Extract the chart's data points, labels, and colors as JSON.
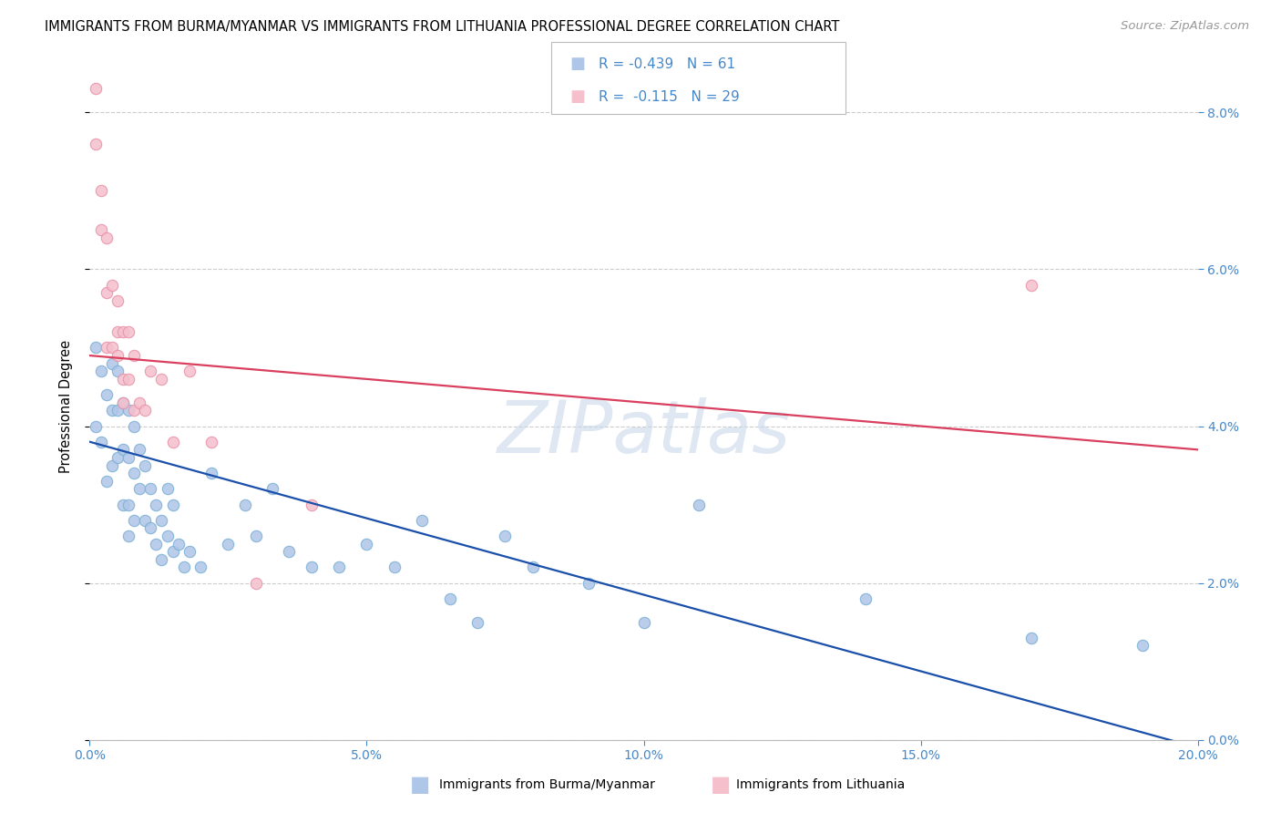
{
  "title": "IMMIGRANTS FROM BURMA/MYANMAR VS IMMIGRANTS FROM LITHUANIA PROFESSIONAL DEGREE CORRELATION CHART",
  "source": "Source: ZipAtlas.com",
  "ylabel": "Professional Degree",
  "legend_blue_label": "Immigrants from Burma/Myanmar",
  "legend_pink_label": "Immigrants from Lithuania",
  "legend_blue_R_val": "-0.439",
  "legend_blue_N_val": "61",
  "legend_pink_R_val": "-0.115",
  "legend_pink_N_val": "29",
  "xlim": [
    0.0,
    0.2
  ],
  "ylim": [
    0.0,
    0.085
  ],
  "xticks": [
    0.0,
    0.05,
    0.1,
    0.15,
    0.2
  ],
  "yticks": [
    0.0,
    0.02,
    0.04,
    0.06,
    0.08
  ],
  "blue_fill": "#aec6e8",
  "pink_fill": "#f5bfcc",
  "blue_edge": "#7aafd4",
  "pink_edge": "#e890a8",
  "blue_line_color": "#1a4faa",
  "pink_line_color": "#d94060",
  "background_color": "#ffffff",
  "grid_color": "#cccccc",
  "tick_color": "#4488cc",
  "watermark_color": "#c8d8ea",
  "blue_x": [
    0.001,
    0.001,
    0.002,
    0.002,
    0.003,
    0.003,
    0.004,
    0.004,
    0.004,
    0.005,
    0.005,
    0.005,
    0.006,
    0.006,
    0.006,
    0.007,
    0.007,
    0.007,
    0.007,
    0.008,
    0.008,
    0.008,
    0.009,
    0.009,
    0.01,
    0.01,
    0.011,
    0.011,
    0.012,
    0.012,
    0.013,
    0.013,
    0.014,
    0.014,
    0.015,
    0.015,
    0.016,
    0.017,
    0.018,
    0.02,
    0.022,
    0.025,
    0.028,
    0.03,
    0.033,
    0.036,
    0.04,
    0.045,
    0.05,
    0.055,
    0.06,
    0.065,
    0.07,
    0.075,
    0.08,
    0.09,
    0.1,
    0.11,
    0.14,
    0.17,
    0.19
  ],
  "blue_y": [
    0.05,
    0.04,
    0.047,
    0.038,
    0.044,
    0.033,
    0.048,
    0.042,
    0.035,
    0.047,
    0.042,
    0.036,
    0.043,
    0.037,
    0.03,
    0.042,
    0.036,
    0.03,
    0.026,
    0.04,
    0.034,
    0.028,
    0.037,
    0.032,
    0.035,
    0.028,
    0.032,
    0.027,
    0.03,
    0.025,
    0.028,
    0.023,
    0.032,
    0.026,
    0.03,
    0.024,
    0.025,
    0.022,
    0.024,
    0.022,
    0.034,
    0.025,
    0.03,
    0.026,
    0.032,
    0.024,
    0.022,
    0.022,
    0.025,
    0.022,
    0.028,
    0.018,
    0.015,
    0.026,
    0.022,
    0.02,
    0.015,
    0.03,
    0.018,
    0.013,
    0.012
  ],
  "pink_x": [
    0.001,
    0.001,
    0.002,
    0.002,
    0.003,
    0.003,
    0.003,
    0.004,
    0.004,
    0.005,
    0.005,
    0.005,
    0.006,
    0.006,
    0.006,
    0.007,
    0.007,
    0.008,
    0.008,
    0.009,
    0.01,
    0.011,
    0.013,
    0.015,
    0.018,
    0.022,
    0.03,
    0.04,
    0.17
  ],
  "pink_y": [
    0.083,
    0.076,
    0.07,
    0.065,
    0.064,
    0.057,
    0.05,
    0.058,
    0.05,
    0.056,
    0.052,
    0.049,
    0.052,
    0.046,
    0.043,
    0.052,
    0.046,
    0.042,
    0.049,
    0.043,
    0.042,
    0.047,
    0.046,
    0.038,
    0.047,
    0.038,
    0.02,
    0.03,
    0.058
  ],
  "blue_line_x0": 0.0,
  "blue_line_y0": 0.038,
  "blue_line_x1": 0.2,
  "blue_line_y1": -0.001,
  "pink_line_x0": 0.0,
  "pink_line_y0": 0.049,
  "pink_line_x1": 0.2,
  "pink_line_y1": 0.037,
  "dot_size": 80,
  "title_fontsize": 10.5,
  "axis_label_fontsize": 10.5,
  "tick_fontsize": 10,
  "source_fontsize": 9.5,
  "legend_fontsize": 11
}
